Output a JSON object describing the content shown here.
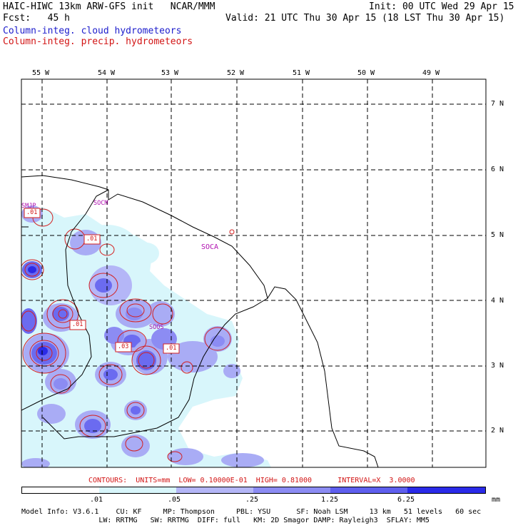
{
  "header": {
    "left_line1": "HAIC-HIWC 13km ARW-GFS init   NCAR/MMM",
    "left_line2": "Fcst:   45 h",
    "right_line1": "Init: 00 UTC Wed 29 Apr 15",
    "right_line2": "Valid: 21 UTC Thu 30 Apr 15 (18 LST Thu 30 Apr 15)",
    "field_cloud": "Column-integ. cloud hydrometeors",
    "field_precip": "Column-integ. precip. hydrometeors"
  },
  "map": {
    "lon_labels": [
      "55 W",
      "54 W",
      "53 W",
      "52 W",
      "51 W",
      "50 W",
      "49 W"
    ],
    "lat_labels": [
      "7 N",
      "6 N",
      "5 N",
      "4 N",
      "3 N",
      "2 N"
    ],
    "stations": [
      "SOCM",
      "SOCA",
      "SOOS",
      "SMJP"
    ],
    "contour_labels": [
      ".01",
      ".01",
      ".01",
      ".03",
      ".01"
    ],
    "colors": {
      "coast": "#000000",
      "grid": "#000000",
      "cloud_light": "#d8f6fb",
      "cloud_mid": "#a9acf5",
      "cloud_dark": "#6b6bf0",
      "cloud_core": "#2b2be6",
      "precip_contour": "#d42020",
      "station": "#b010b0"
    }
  },
  "footer": {
    "contours_line": "CONTOURS:  UNITS=mm  LOW= 0.10000E-01  HIGH= 0.81000      INTERVAL=X  3.0000",
    "legend_ticks": [
      ".01",
      ".05",
      ".25",
      "1.25",
      "6.25"
    ],
    "legend_units": "mm",
    "legend_colors": [
      "#ffffff",
      "#d8f6fb",
      "#b4b6f7",
      "#8c8cf3",
      "#5f5fee",
      "#2a2ae8"
    ],
    "model_line1": "Model Info: V3.6.1    CU: KF     MP: Thompson     PBL: YSU      SF: Noah LSM     13 km   51 levels   60 sec",
    "model_line2": "                  LW: RRTMG   SW: RRTMG  DIFF: full   KM: 2D Smagor DAMP: Rayleigh3  SFLAY: MM5"
  }
}
